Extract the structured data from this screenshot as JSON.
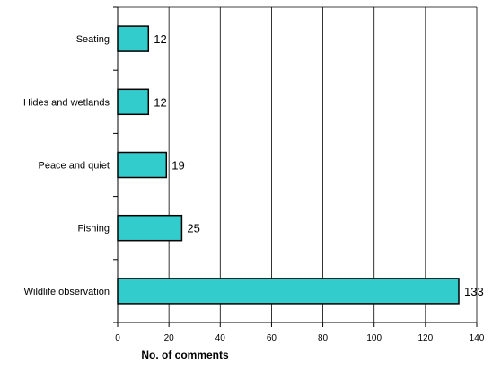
{
  "chart_data": {
    "type": "bar",
    "orientation": "horizontal",
    "categories": [
      "Seating",
      "Hides and wetlands",
      "Peace and quiet",
      "Fishing",
      "Wildlife observation"
    ],
    "values": [
      12,
      12,
      19,
      25,
      133
    ],
    "data_labels": [
      "12",
      "12",
      "19",
      "25",
      "133"
    ],
    "xlabel": "No. of comments",
    "xlim": [
      0,
      140
    ],
    "xticks": [
      0,
      20,
      40,
      60,
      80,
      100,
      120,
      140
    ],
    "xtick_labels": [
      "0",
      "20",
      "40",
      "60",
      "80",
      "100",
      "120",
      "140"
    ],
    "grid": "vertical",
    "legend": "none",
    "colors": {
      "bar_fill": "#33CCCC",
      "bar_stroke": "#000000",
      "grid": "#000000",
      "axis": "#000000",
      "text": "#000000"
    }
  }
}
